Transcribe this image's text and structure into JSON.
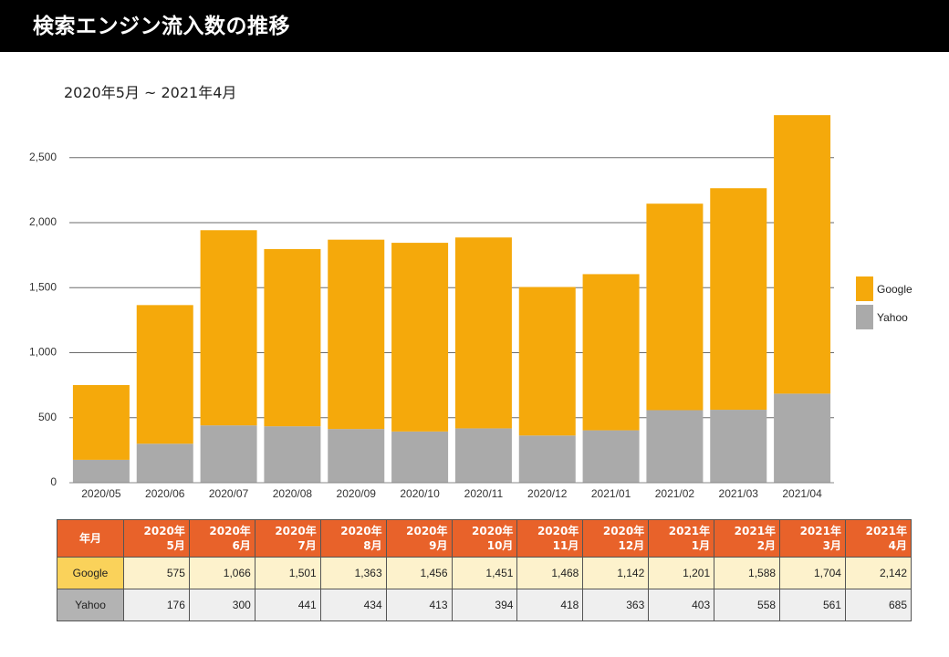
{
  "header": {
    "title": "検索エンジン流入数の推移"
  },
  "subtitle": "2020年5月 ~ 2021年4月",
  "colors": {
    "google": "#f5a90b",
    "yahoo": "#aaaaaa",
    "header_bg": "#000000",
    "table_head": "#e8622a"
  },
  "chart_data": {
    "type": "bar",
    "stacked": true,
    "categories": [
      "2020/05",
      "2020/06",
      "2020/07",
      "2020/08",
      "2020/09",
      "2020/10",
      "2020/11",
      "2020/12",
      "2021/01",
      "2021/02",
      "2021/03",
      "2021/04"
    ],
    "series": [
      {
        "name": "Yahoo",
        "values": [
          176,
          300,
          441,
          434,
          413,
          394,
          418,
          363,
          403,
          558,
          561,
          685
        ]
      },
      {
        "name": "Google",
        "values": [
          575,
          1066,
          1501,
          1363,
          1456,
          1451,
          1468,
          1142,
          1201,
          1588,
          1704,
          2142
        ]
      }
    ],
    "ylim": [
      0,
      2800
    ],
    "yticks": [
      0,
      500,
      1000,
      1500,
      2000,
      2500
    ],
    "ytick_labels": [
      "0",
      "500",
      "1,000",
      "1,500",
      "2,000",
      "2,500"
    ],
    "grid": true,
    "legend": "right"
  },
  "table": {
    "corner": "年月",
    "headers": [
      [
        "2020年",
        "5月"
      ],
      [
        "2020年",
        "6月"
      ],
      [
        "2020年",
        "7月"
      ],
      [
        "2020年",
        "8月"
      ],
      [
        "2020年",
        "9月"
      ],
      [
        "2020年",
        "10月"
      ],
      [
        "2020年",
        "11月"
      ],
      [
        "2020年",
        "12月"
      ],
      [
        "2021年",
        "1月"
      ],
      [
        "2021年",
        "2月"
      ],
      [
        "2021年",
        "3月"
      ],
      [
        "2021年",
        "4月"
      ]
    ],
    "rows": [
      {
        "label": "Google",
        "values": [
          "575",
          "1,066",
          "1,501",
          "1,363",
          "1,456",
          "1,451",
          "1,468",
          "1,142",
          "1,201",
          "1,588",
          "1,704",
          "2,142"
        ]
      },
      {
        "label": "Yahoo",
        "values": [
          "176",
          "300",
          "441",
          "434",
          "413",
          "394",
          "418",
          "363",
          "403",
          "558",
          "561",
          "685"
        ]
      }
    ]
  }
}
